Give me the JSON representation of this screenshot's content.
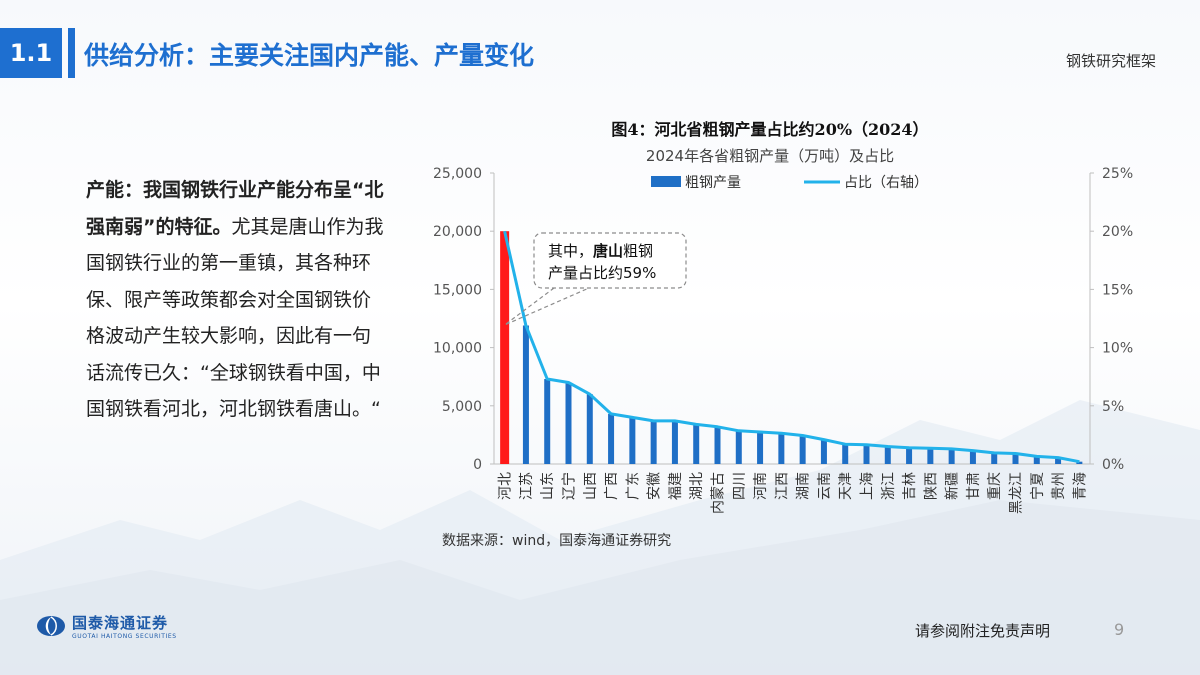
{
  "header": {
    "section_number": "1.1",
    "title": "供给分析：主要关注国内产能、产量变化",
    "top_right": "钢铁研究框架"
  },
  "body": {
    "bold_part": "产能：我国钢铁行业产能分布呈“北强南弱”的特征。",
    "normal_part": "尤其是唐山作为我国钢铁行业的第一重镇，其各种环保、限产等政策都会对全国钢铁价格波动产生较大影响，因此有一句话流传已久：“全球钢铁看中国，中国钢铁看河北，河北钢铁看唐山。“"
  },
  "chart_data": {
    "type": "bar",
    "title": "图4：河北省粗钢产量占比约20%（2024）",
    "subtitle": "2024年各省粗钢产量（万吨）及占比",
    "categories": [
      "河北",
      "江苏",
      "山东",
      "辽宁",
      "山西",
      "广西",
      "广东",
      "安徽",
      "福建",
      "湖北",
      "内蒙古",
      "四川",
      "河南",
      "江西",
      "湖南",
      "云南",
      "天津",
      "上海",
      "浙江",
      "吉林",
      "陕西",
      "新疆",
      "甘肃",
      "重庆",
      "黑龙江",
      "宁夏",
      "贵州",
      "青海"
    ],
    "series": [
      {
        "name": "粗钢产量",
        "axis": "left",
        "type": "bar",
        "color": "#1f6fc6",
        "values": [
          20000,
          11900,
          7300,
          7000,
          6000,
          4300,
          4000,
          3700,
          3700,
          3400,
          3200,
          2850,
          2750,
          2650,
          2450,
          2100,
          1700,
          1650,
          1500,
          1400,
          1350,
          1300,
          1150,
          950,
          900,
          650,
          550,
          200
        ]
      },
      {
        "name": "占比（右轴）",
        "axis": "right",
        "type": "line",
        "color": "#22b2ea",
        "values": [
          20.0,
          11.9,
          7.3,
          7.0,
          6.0,
          4.3,
          4.0,
          3.7,
          3.7,
          3.4,
          3.2,
          2.85,
          2.75,
          2.65,
          2.45,
          2.1,
          1.7,
          1.65,
          1.5,
          1.4,
          1.35,
          1.3,
          1.15,
          0.95,
          0.9,
          0.65,
          0.55,
          0.2
        ]
      }
    ],
    "highlight": {
      "category": "河北",
      "color": "#ff1a1a"
    },
    "y_left": {
      "min": 0,
      "max": 25000,
      "ticks": [
        "0",
        "5,000",
        "10,000",
        "15,000",
        "20,000",
        "25,000"
      ]
    },
    "y_right": {
      "min": 0,
      "max": 25,
      "ticks": [
        "0%",
        "5%",
        "10%",
        "15%",
        "20%",
        "25%"
      ]
    },
    "legend_position": "top",
    "annotation": {
      "line1_prefix": "其中，",
      "line1_bold": "唐山",
      "line1_suffix": "粗钢",
      "line2": "产量占比约59%"
    },
    "source": "数据来源：wind，国泰海通证券研究"
  },
  "footer": {
    "logo_cn": "国泰海通证券",
    "logo_en": "GUOTAI HAITONG SECURITIES",
    "disclaimer": "请参阅附注免责声明",
    "page_number": "9"
  },
  "colors": {
    "accent": "#1e6fd0",
    "bar": "#1f6fc6",
    "highlight": "#ff1a1a",
    "line": "#22b2ea"
  }
}
